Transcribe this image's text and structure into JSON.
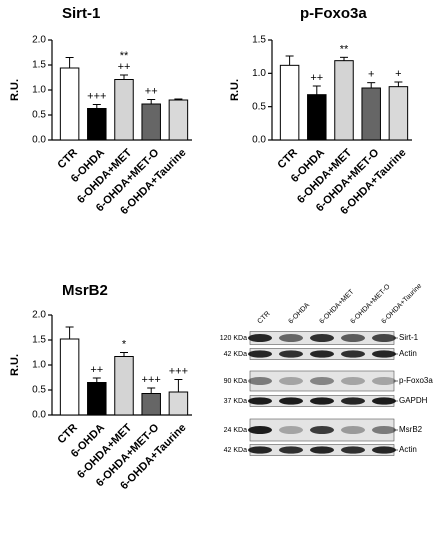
{
  "chart_data": [
    {
      "type": "bar",
      "title": "Sirt-1",
      "y_label": "R.U.",
      "categories": [
        "CTR",
        "6-OHDA",
        "6-OHDA+MET",
        "6-OHDA+MET-O",
        "6-OHDA+Taurine"
      ],
      "values": [
        1.44,
        0.63,
        1.21,
        0.72,
        0.8
      ],
      "errors": [
        0.21,
        0.08,
        0.09,
        0.09,
        0.02
      ],
      "colors": [
        "#ffffff",
        "#000000",
        "#d4d4d4",
        "#666666",
        "#d9d9d9"
      ],
      "annotations": [
        [],
        [
          "+++"
        ],
        [
          "**",
          "++"
        ],
        [
          "++"
        ],
        []
      ],
      "ylim": [
        0,
        2
      ],
      "yticks": [
        {
          "value": 0,
          "label": "0.0"
        },
        0.5,
        {
          "value": 1,
          "label": "1.0"
        },
        1.5,
        {
          "value": 2,
          "label": "2.0"
        }
      ]
    },
    {
      "type": "bar",
      "title": "p-Foxo3a",
      "y_label": "R.U.",
      "categories": [
        "CTR",
        "6-OHDA",
        "6-OHDA+MET",
        "6-OHDA+MET-O",
        "6-OHDA+Taurine"
      ],
      "values": [
        1.12,
        0.68,
        1.19,
        0.78,
        0.8
      ],
      "errors": [
        0.14,
        0.13,
        0.05,
        0.08,
        0.07
      ],
      "colors": [
        "#ffffff",
        "#000000",
        "#d4d4d4",
        "#666666",
        "#d9d9d9"
      ],
      "annotations": [
        [],
        [
          "++"
        ],
        [
          "**"
        ],
        [
          "+"
        ],
        [
          "+"
        ]
      ],
      "ylim": [
        0,
        1.5
      ],
      "yticks": [
        {
          "value": 0,
          "label": "0.0"
        },
        0.5,
        {
          "value": 1,
          "label": "1.0"
        },
        1.5
      ]
    },
    {
      "type": "bar",
      "title": "MsrB2",
      "y_label": "R.U.",
      "categories": [
        "CTR",
        "6-OHDA",
        "6-OHDA+MET",
        "6-OHDA+MET-O",
        "6-OHDA+Taurine"
      ],
      "values": [
        1.52,
        0.65,
        1.17,
        0.43,
        0.46
      ],
      "errors": [
        0.24,
        0.09,
        0.08,
        0.11,
        0.25
      ],
      "colors": [
        "#ffffff",
        "#000000",
        "#d4d4d4",
        "#666666",
        "#d9d9d9"
      ],
      "annotations": [
        [],
        [
          "++"
        ],
        [
          "*"
        ],
        [
          "+++"
        ],
        [
          "+++"
        ]
      ],
      "ylim": [
        0,
        2
      ],
      "yticks": [
        {
          "value": 0,
          "label": "0.0"
        },
        0.5,
        {
          "value": 1,
          "label": "1.0"
        },
        1.5,
        {
          "value": 2,
          "label": "2.0"
        }
      ]
    }
  ],
  "blot": {
    "lanes": [
      "CTR",
      "6-OHDA",
      "6-OHDA+MET",
      "6-OHDA+MET-O",
      "6-OHDA+Taurine"
    ],
    "rows": [
      {
        "size": "120 KDa",
        "protein": "Sirt-1"
      },
      {
        "size": "42 KDa",
        "protein": "Actin"
      },
      {
        "size": "90 KDa",
        "protein": "p-Foxo3a"
      },
      {
        "size": "37 KDa",
        "protein": "GAPDH"
      },
      {
        "size": "24 KDa",
        "protein": "MsrB2"
      },
      {
        "size": "42 KDa",
        "protein": "Actin"
      }
    ]
  }
}
